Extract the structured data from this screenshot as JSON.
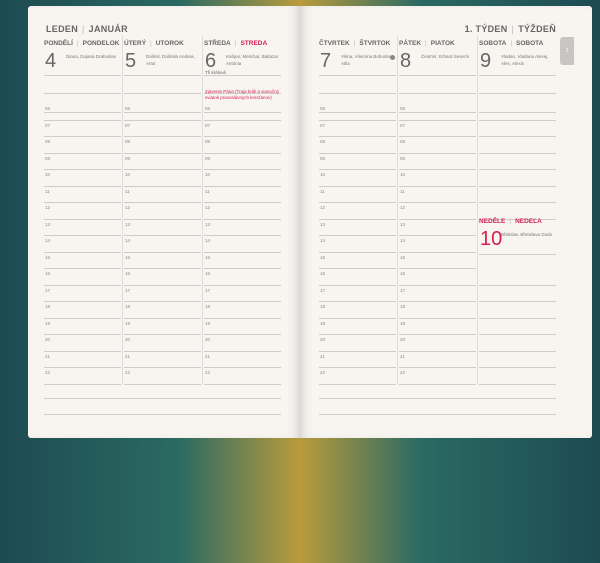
{
  "month": {
    "cz": "LEDEN",
    "sk": "JANUÁR"
  },
  "week": {
    "cz": "1. TÝDEN",
    "sk": "TÝŽDEŇ"
  },
  "tab": "1",
  "hours": [
    "06",
    "07",
    "08",
    "09",
    "10",
    "11",
    "12",
    "13",
    "14",
    "15",
    "16",
    "17",
    "18",
    "19",
    "20",
    "21",
    "22"
  ],
  "days": [
    {
      "cz": "PONDĚLÍ",
      "sk": "PONDELOK",
      "num": "4",
      "names": "Diana, Dojana Drahoslav"
    },
    {
      "cz": "ÚTERÝ",
      "sk": "UTOROK",
      "num": "5",
      "names": "Dalimil, Dalimila Andrea, Artur"
    },
    {
      "cz": "STŘEDA",
      "sk": "STREDA",
      "num": "6",
      "names": "Kašpar, Melichar, Baltazar Antónia",
      "note": "Tři králové",
      "holiday": "Zjavenie Pána (Traja králi a vianočný sviatok pravoslávnych kresťanov)"
    },
    {
      "cz": "ČTVRTEK",
      "sk": "ŠTVRTOK",
      "num": "7",
      "names": "Vilma, Vilemína Bohuslava, Atila"
    },
    {
      "cz": "PÁTEK",
      "sk": "PIATOK",
      "num": "8",
      "names": "Čestmír, Erhard Severín"
    },
    {
      "cz": "SOBOTA",
      "sk": "SOBOTA",
      "num": "9",
      "names": "Vladan, Vladana Alexej, Alex, Alexis"
    },
    {
      "cz": "NEDĚLE",
      "sk": "NEDEĽA",
      "num": "10",
      "names": "Břetislav, Břetislava Dodo"
    }
  ],
  "colors": {
    "accent": "#d5204f",
    "page": "#f8f5f0"
  }
}
